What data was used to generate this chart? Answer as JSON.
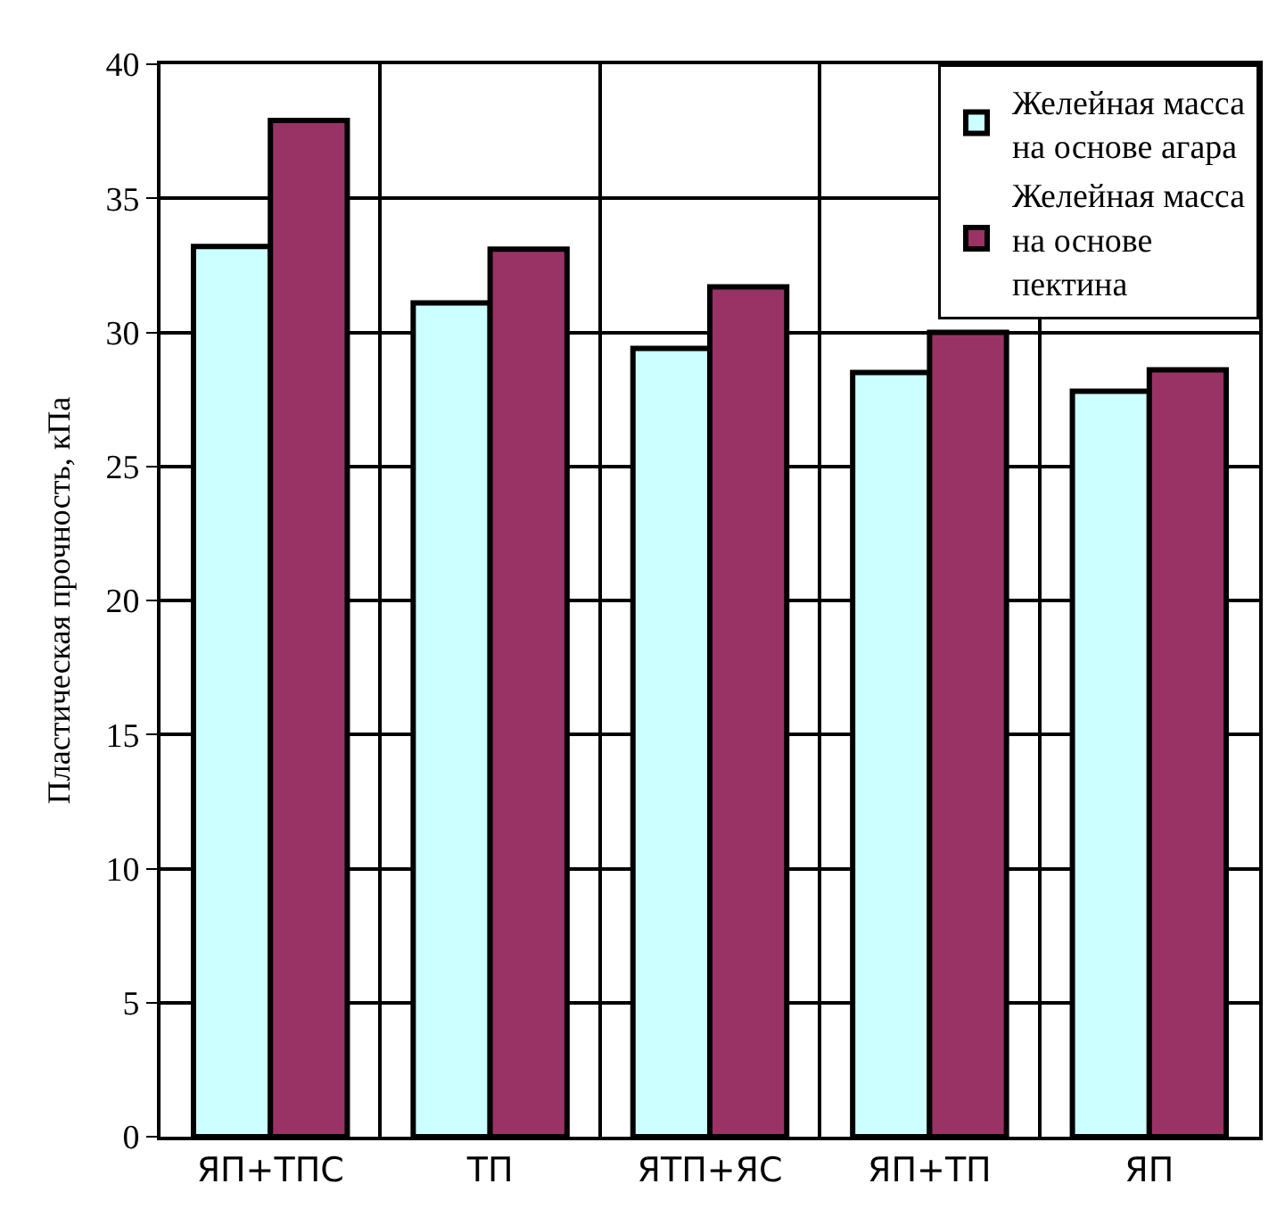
{
  "chart_data": {
    "type": "bar",
    "ylabel": "Пластическая прочность, кПа",
    "categories": [
      "ЯП+ТПС",
      "ТП",
      "ЯТП+ЯС",
      "ЯП+ТП",
      "ЯП"
    ],
    "series": [
      {
        "name": "Желейная масса на основе агара",
        "color": "#ccffff",
        "values": [
          33.2,
          31.1,
          29.4,
          28.5,
          27.8
        ]
      },
      {
        "name": "Желейная масса на основе пектина",
        "color": "#993366",
        "values": [
          37.9,
          33.1,
          31.7,
          30.0,
          28.6
        ]
      }
    ],
    "ylim": [
      0,
      40
    ],
    "yticks": [
      0,
      5,
      10,
      15,
      20,
      25,
      30,
      35,
      40
    ],
    "grid": true,
    "legend": "top right"
  }
}
